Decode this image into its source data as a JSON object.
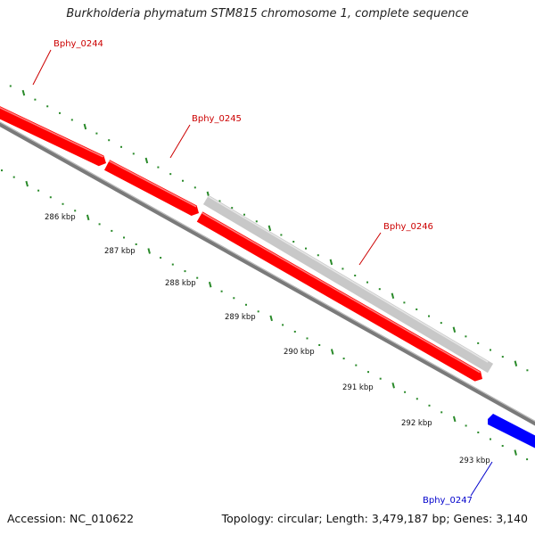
{
  "title": "Burkholderia phymatum STM815 chromosome 1, complete sequence",
  "footer": {
    "accession": "Accession: NC_010622",
    "topology": "Topology: circular; Length: 3,479,187 bp; Genes: 3,140"
  },
  "colors": {
    "forward_gene": "#ff0000",
    "reverse_gene": "#0000ff",
    "other_feature": "#c8c8c8",
    "backbone": "#7a7a7a",
    "tick": "#2a8a2a",
    "label_forward": "#cc0000",
    "label_reverse": "#0000cc"
  },
  "scale_labels": [
    "286 kbp",
    "287 kbp",
    "288 kbp",
    "289 kbp",
    "290 kbp",
    "291 kbp",
    "292 kbp",
    "293 kbp"
  ],
  "genes": [
    {
      "label": "Bphy_0244",
      "strand": "forward"
    },
    {
      "label": "Bphy_0245",
      "strand": "forward"
    },
    {
      "label": "Bphy_0246",
      "strand": "forward"
    },
    {
      "label": "Bphy_0247",
      "strand": "reverse"
    }
  ]
}
